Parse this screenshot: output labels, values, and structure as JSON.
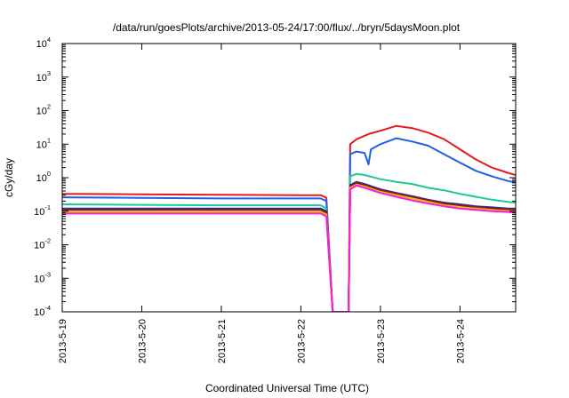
{
  "chart_data": {
    "type": "line",
    "title": "/data/run/goesPlots/archive/2013-05-24/17:00/flux/../bryn/5daysMoon.plot",
    "xlabel": "Coordinated Universal Time (UTC)",
    "ylabel": "cGy/day",
    "yscale": "log",
    "ylim": [
      0.0001,
      10000
    ],
    "xlim": [
      0,
      5.7
    ],
    "x_unit": "days since 2013-5-19 00:00 UTC",
    "y_ticks": [
      {
        "base": "10",
        "exp": "-4"
      },
      {
        "base": "10",
        "exp": "-3"
      },
      {
        "base": "10",
        "exp": "-2"
      },
      {
        "base": "10",
        "exp": "-1"
      },
      {
        "base": "10",
        "exp": "0"
      },
      {
        "base": "10",
        "exp": "1"
      },
      {
        "base": "10",
        "exp": "2"
      },
      {
        "base": "10",
        "exp": "3"
      },
      {
        "base": "10",
        "exp": "4"
      }
    ],
    "x_ticks": [
      "2013-5-19",
      "2013-5-20",
      "2013-5-21",
      "2013-5-22",
      "2013-5-23",
      "2013-5-24"
    ],
    "grid": false,
    "legend": "none",
    "series": [
      {
        "color": "#e8191e",
        "points": [
          [
            0,
            0.33
          ],
          [
            1,
            0.32
          ],
          [
            2,
            0.31
          ],
          [
            3,
            0.3
          ],
          [
            3.25,
            0.3
          ],
          [
            3.32,
            0.25
          ],
          [
            3.4,
            0.0001
          ],
          [
            3.6,
            0.0001
          ],
          [
            3.62,
            10
          ],
          [
            3.7,
            14
          ],
          [
            3.85,
            20
          ],
          [
            4.0,
            25
          ],
          [
            4.2,
            35
          ],
          [
            4.4,
            30
          ],
          [
            4.6,
            22
          ],
          [
            4.8,
            14
          ],
          [
            5.0,
            7
          ],
          [
            5.2,
            3.5
          ],
          [
            5.4,
            2.0
          ],
          [
            5.6,
            1.4
          ],
          [
            5.7,
            1.2
          ]
        ]
      },
      {
        "color": "#1e5fe8",
        "points": [
          [
            0,
            0.26
          ],
          [
            1,
            0.25
          ],
          [
            2,
            0.24
          ],
          [
            3,
            0.24
          ],
          [
            3.25,
            0.24
          ],
          [
            3.32,
            0.2
          ],
          [
            3.4,
            0.0001
          ],
          [
            3.6,
            0.0001
          ],
          [
            3.62,
            5
          ],
          [
            3.7,
            6
          ],
          [
            3.8,
            5.5
          ],
          [
            3.85,
            2.5
          ],
          [
            3.88,
            7
          ],
          [
            4.0,
            10
          ],
          [
            4.2,
            15
          ],
          [
            4.4,
            12
          ],
          [
            4.6,
            9
          ],
          [
            4.8,
            5
          ],
          [
            5.0,
            2.8
          ],
          [
            5.2,
            1.6
          ],
          [
            5.4,
            1.1
          ],
          [
            5.6,
            0.8
          ],
          [
            5.7,
            0.72
          ]
        ]
      },
      {
        "color": "#19c89b",
        "points": [
          [
            0,
            0.16
          ],
          [
            1,
            0.155
          ],
          [
            2,
            0.15
          ],
          [
            3,
            0.15
          ],
          [
            3.25,
            0.15
          ],
          [
            3.32,
            0.12
          ],
          [
            3.4,
            0.0001
          ],
          [
            3.6,
            0.0001
          ],
          [
            3.62,
            1.1
          ],
          [
            3.7,
            1.3
          ],
          [
            3.8,
            1.2
          ],
          [
            4.0,
            0.9
          ],
          [
            4.2,
            0.75
          ],
          [
            4.4,
            0.65
          ],
          [
            4.6,
            0.5
          ],
          [
            4.8,
            0.42
          ],
          [
            5.0,
            0.33
          ],
          [
            5.2,
            0.27
          ],
          [
            5.4,
            0.22
          ],
          [
            5.6,
            0.19
          ],
          [
            5.7,
            0.18
          ]
        ]
      },
      {
        "color": "#2a2a9a",
        "points": [
          [
            0,
            0.12
          ],
          [
            1,
            0.12
          ],
          [
            2,
            0.12
          ],
          [
            3,
            0.12
          ],
          [
            3.25,
            0.12
          ],
          [
            3.32,
            0.1
          ],
          [
            3.4,
            0.0001
          ],
          [
            3.6,
            0.0001
          ],
          [
            3.62,
            0.6
          ],
          [
            3.7,
            0.75
          ],
          [
            3.8,
            0.65
          ],
          [
            4.0,
            0.45
          ],
          [
            4.2,
            0.35
          ],
          [
            4.4,
            0.28
          ],
          [
            4.6,
            0.22
          ],
          [
            4.8,
            0.18
          ],
          [
            5.0,
            0.16
          ],
          [
            5.2,
            0.14
          ],
          [
            5.4,
            0.13
          ],
          [
            5.6,
            0.12
          ],
          [
            5.7,
            0.12
          ]
        ]
      },
      {
        "color": "#8b1a1a",
        "points": [
          [
            0,
            0.11
          ],
          [
            1,
            0.11
          ],
          [
            2,
            0.11
          ],
          [
            3,
            0.11
          ],
          [
            3.25,
            0.11
          ],
          [
            3.32,
            0.09
          ],
          [
            3.4,
            0.0001
          ],
          [
            3.6,
            0.0001
          ],
          [
            3.62,
            0.55
          ],
          [
            3.7,
            0.7
          ],
          [
            3.8,
            0.6
          ],
          [
            4.0,
            0.42
          ],
          [
            4.2,
            0.33
          ],
          [
            4.4,
            0.26
          ],
          [
            4.6,
            0.21
          ],
          [
            4.8,
            0.17
          ],
          [
            5.0,
            0.15
          ],
          [
            5.2,
            0.13
          ],
          [
            5.4,
            0.12
          ],
          [
            5.6,
            0.115
          ],
          [
            5.7,
            0.11
          ]
        ]
      },
      {
        "color": "#e6c000",
        "points": [
          [
            0,
            0.095
          ],
          [
            1,
            0.095
          ],
          [
            2,
            0.095
          ],
          [
            3,
            0.095
          ],
          [
            3.25,
            0.095
          ],
          [
            3.32,
            0.08
          ],
          [
            3.4,
            0.0001
          ],
          [
            3.6,
            0.0001
          ],
          [
            3.62,
            0.5
          ],
          [
            3.7,
            0.62
          ],
          [
            3.8,
            0.55
          ],
          [
            4.0,
            0.38
          ],
          [
            4.2,
            0.3
          ],
          [
            4.4,
            0.24
          ],
          [
            4.6,
            0.19
          ],
          [
            4.8,
            0.15
          ],
          [
            5.0,
            0.13
          ],
          [
            5.2,
            0.12
          ],
          [
            5.4,
            0.11
          ],
          [
            5.6,
            0.1
          ],
          [
            5.7,
            0.1
          ]
        ]
      },
      {
        "color": "#ff19e0",
        "points": [
          [
            0,
            0.085
          ],
          [
            1,
            0.085
          ],
          [
            2,
            0.085
          ],
          [
            3,
            0.085
          ],
          [
            3.25,
            0.085
          ],
          [
            3.32,
            0.07
          ],
          [
            3.4,
            0.0001
          ],
          [
            3.6,
            0.0001
          ],
          [
            3.62,
            0.45
          ],
          [
            3.7,
            0.58
          ],
          [
            3.8,
            0.5
          ],
          [
            4.0,
            0.35
          ],
          [
            4.2,
            0.27
          ],
          [
            4.4,
            0.21
          ],
          [
            4.6,
            0.17
          ],
          [
            4.8,
            0.14
          ],
          [
            5.0,
            0.12
          ],
          [
            5.2,
            0.11
          ],
          [
            5.4,
            0.1
          ],
          [
            5.6,
            0.095
          ],
          [
            5.7,
            0.09
          ]
        ]
      }
    ]
  }
}
